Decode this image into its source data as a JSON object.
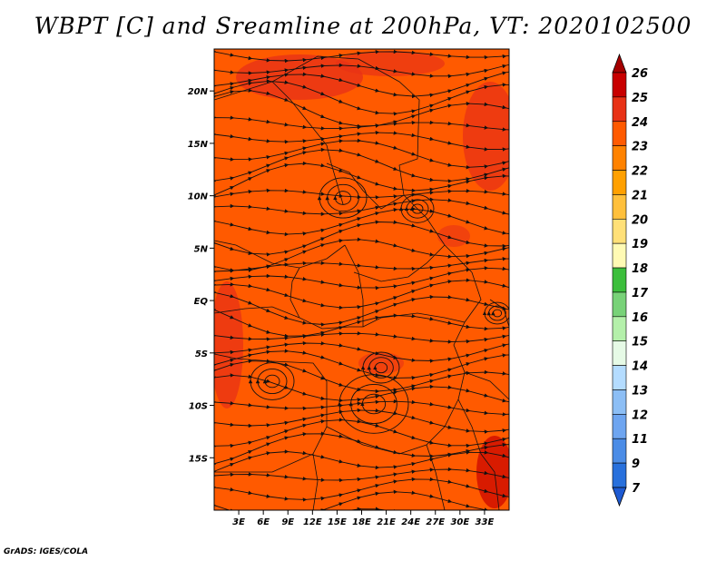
{
  "title": "WBPT [C] and Sreamline at 200hPa, VT: 2020102500",
  "credit": "GrADS: IGES/COLA",
  "map": {
    "lon_range": [
      0,
      36
    ],
    "lat_range": [
      -20,
      24
    ],
    "x_ticks": [
      "3E",
      "6E",
      "9E",
      "12E",
      "15E",
      "18E",
      "21E",
      "24E",
      "27E",
      "30E",
      "33E"
    ],
    "x_tick_values": [
      3,
      6,
      9,
      12,
      15,
      18,
      21,
      24,
      27,
      30,
      33
    ],
    "y_ticks": [
      "20N",
      "15N",
      "10N",
      "5N",
      "EQ",
      "5S",
      "10S",
      "15S"
    ],
    "y_tick_values": [
      20,
      15,
      10,
      5,
      0,
      -5,
      -10,
      -15
    ],
    "dominant_fill": "#ff5a00",
    "secondary_fill": "#e83216"
  },
  "colorbar": {
    "labels": [
      "26",
      "25",
      "24",
      "23",
      "22",
      "21",
      "20",
      "19",
      "18",
      "17",
      "16",
      "15",
      "14",
      "13",
      "12",
      "11",
      "9",
      "7"
    ],
    "colors": [
      "#a50000",
      "#c80000",
      "#e83216",
      "#ff5a00",
      "#ff8200",
      "#ffa000",
      "#ffc03c",
      "#ffe078",
      "#fffab4",
      "#3cbe3c",
      "#78d278",
      "#b4f0aa",
      "#e6fae6",
      "#b4dcff",
      "#8cbef5",
      "#6ea5f0",
      "#4b8ce6",
      "#2870dc",
      "#1e5ad2"
    ]
  }
}
